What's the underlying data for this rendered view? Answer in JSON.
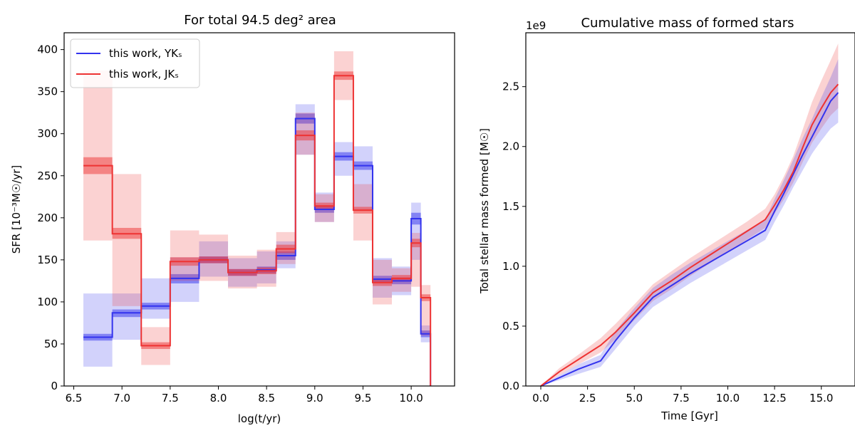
{
  "chart_data": [
    {
      "type": "line",
      "subtype": "step",
      "title": "For total 94.5 deg² area",
      "xlabel": "log(t/yr)",
      "ylabel": "SFR [10⁻³M☉/yr]",
      "xlim": [
        6.4,
        10.45
      ],
      "ylim": [
        0,
        420
      ],
      "xticks": [
        6.5,
        7.0,
        7.5,
        8.0,
        8.5,
        9.0,
        9.5,
        10.0
      ],
      "xtick_labels": [
        "6.5",
        "7.0",
        "7.5",
        "8.0",
        "8.5",
        "9.0",
        "9.5",
        "10.0"
      ],
      "yticks": [
        0,
        50,
        100,
        150,
        200,
        250,
        300,
        350,
        400
      ],
      "ytick_labels": [
        "0",
        "50",
        "100",
        "150",
        "200",
        "250",
        "300",
        "350",
        "400"
      ],
      "legend": {
        "position": "top-left"
      },
      "bin_edges": [
        6.6,
        6.9,
        7.2,
        7.5,
        7.8,
        8.1,
        8.4,
        8.6,
        8.8,
        9.0,
        9.2,
        9.4,
        9.6,
        9.8,
        10.0,
        10.1,
        10.2
      ],
      "series": [
        {
          "name": "this work, YKₛ",
          "color": "#3333ee",
          "values": [
            58,
            87,
            95,
            128,
            150,
            135,
            138,
            155,
            318,
            210,
            273,
            262,
            127,
            125,
            199,
            62
          ],
          "inner_lower": [
            54,
            82,
            91,
            122,
            146,
            131,
            134,
            150,
            312,
            206,
            268,
            257,
            123,
            121,
            192,
            58
          ],
          "inner_upper": [
            62,
            91,
            99,
            133,
            154,
            139,
            142,
            160,
            324,
            214,
            278,
            267,
            131,
            129,
            206,
            66
          ],
          "outer_lower": [
            23,
            55,
            80,
            100,
            130,
            118,
            122,
            140,
            275,
            195,
            250,
            210,
            105,
            108,
            150,
            52
          ],
          "outer_upper": [
            110,
            110,
            128,
            153,
            172,
            152,
            160,
            172,
            335,
            230,
            290,
            285,
            152,
            142,
            218,
            72
          ]
        },
        {
          "name": "this work, JKₛ",
          "color": "#ee3333",
          "values": [
            262,
            181,
            48,
            148,
            150,
            135,
            137,
            163,
            298,
            214,
            369,
            209,
            123,
            128,
            170,
            105
          ],
          "inner_lower": [
            252,
            175,
            44,
            143,
            146,
            131,
            133,
            158,
            292,
            210,
            364,
            205,
            119,
            124,
            165,
            101
          ],
          "inner_upper": [
            272,
            188,
            52,
            153,
            154,
            139,
            141,
            168,
            304,
            218,
            374,
            213,
            127,
            132,
            175,
            109
          ],
          "outer_lower": [
            173,
            95,
            25,
            125,
            125,
            116,
            118,
            145,
            275,
            195,
            340,
            173,
            97,
            112,
            118,
            60
          ],
          "outer_upper": [
            375,
            252,
            70,
            185,
            180,
            155,
            162,
            183,
            325,
            228,
            398,
            240,
            150,
            140,
            182,
            120
          ]
        }
      ]
    },
    {
      "type": "area",
      "title": "Cumulative mass of formed stars",
      "xlabel": "Time [Gyr]",
      "ylabel": "Total stellar mass formed [M☉]",
      "offset_text": "1e9",
      "xlim": [
        -0.8,
        16.8
      ],
      "ylim": [
        0,
        2.95
      ],
      "xticks": [
        0.0,
        2.5,
        5.0,
        7.5,
        10.0,
        12.5,
        15.0
      ],
      "xtick_labels": [
        "0.0",
        "2.5",
        "5.0",
        "7.5",
        "10.0",
        "12.5",
        "15.0"
      ],
      "yticks": [
        0.0,
        0.5,
        1.0,
        1.5,
        2.0,
        2.5
      ],
      "ytick_labels": [
        "0.0",
        "0.5",
        "1.0",
        "1.5",
        "2.0",
        "2.5"
      ],
      "x": [
        0.0,
        1.0,
        2.0,
        3.2,
        4.0,
        5.0,
        6.0,
        7.0,
        8.0,
        9.0,
        10.0,
        11.0,
        12.0,
        12.5,
        13.0,
        13.5,
        14.0,
        14.5,
        15.0,
        15.5,
        15.9
      ],
      "series": [
        {
          "color": "#3333ee",
          "values": [
            0.0,
            0.07,
            0.14,
            0.21,
            0.38,
            0.57,
            0.74,
            0.84,
            0.94,
            1.03,
            1.12,
            1.21,
            1.3,
            1.46,
            1.61,
            1.77,
            1.93,
            2.08,
            2.23,
            2.38,
            2.45
          ],
          "lower": [
            0.0,
            0.05,
            0.1,
            0.16,
            0.31,
            0.5,
            0.66,
            0.76,
            0.86,
            0.95,
            1.04,
            1.13,
            1.22,
            1.37,
            1.51,
            1.66,
            1.8,
            1.94,
            2.05,
            2.15,
            2.2
          ],
          "upper": [
            0.0,
            0.09,
            0.18,
            0.26,
            0.46,
            0.65,
            0.82,
            0.93,
            1.03,
            1.12,
            1.21,
            1.3,
            1.39,
            1.56,
            1.72,
            1.89,
            2.07,
            2.23,
            2.41,
            2.58,
            2.73
          ]
        },
        {
          "color": "#ee3333",
          "values": [
            0.0,
            0.12,
            0.22,
            0.34,
            0.45,
            0.61,
            0.78,
            0.88,
            0.99,
            1.09,
            1.19,
            1.29,
            1.39,
            1.51,
            1.64,
            1.79,
            1.99,
            2.18,
            2.32,
            2.45,
            2.52
          ],
          "lower": [
            0.0,
            0.09,
            0.18,
            0.28,
            0.39,
            0.55,
            0.71,
            0.81,
            0.92,
            1.02,
            1.12,
            1.22,
            1.32,
            1.44,
            1.56,
            1.7,
            1.87,
            2.03,
            2.15,
            2.26,
            2.32
          ],
          "upper": [
            0.0,
            0.15,
            0.26,
            0.4,
            0.52,
            0.68,
            0.85,
            0.96,
            1.07,
            1.17,
            1.27,
            1.37,
            1.48,
            1.6,
            1.75,
            1.92,
            2.14,
            2.37,
            2.55,
            2.72,
            2.86
          ]
        }
      ]
    }
  ]
}
